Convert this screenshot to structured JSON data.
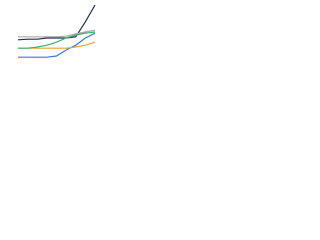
{
  "chart_data": {
    "type": "line",
    "categories": [
      null,
      null,
      null,
      null,
      null,
      null,
      null,
      null,
      null
    ],
    "series": [
      {
        "color": "#1f2d4f",
        "values": [
          42,
          43,
          43,
          45,
          45,
          45,
          47,
          72,
          100
        ]
      },
      {
        "color": "#3a78d8",
        "values": [
          13,
          13,
          13,
          13,
          15,
          25,
          33,
          45,
          53
        ]
      },
      {
        "color": "#a8a8a8",
        "values": [
          47,
          47,
          47,
          47,
          47,
          48,
          52,
          55,
          58
        ]
      },
      {
        "color": "#e8a33a",
        "values": [
          28,
          28,
          28,
          28,
          28,
          28,
          30,
          33,
          38
        ]
      },
      {
        "color": "#3bb36b",
        "values": [
          28,
          28,
          30,
          33,
          38,
          45,
          50,
          53,
          55
        ]
      }
    ],
    "ylim": [
      0,
      100
    ]
  }
}
